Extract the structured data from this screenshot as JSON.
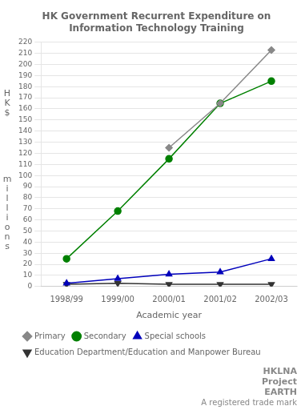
{
  "chart_data": {
    "type": "line",
    "title": "HK Government Recurrent Expenditure on Information Technology Training",
    "xlabel": "Academic year",
    "ylabel": [
      "H\nK\n$",
      "m\ni\nl\nl\ni\no\nn\ns"
    ],
    "categories": [
      "1998/99",
      "1999/00",
      "2000/01",
      "2001/02",
      "2002/03"
    ],
    "series": [
      {
        "name": "Primary",
        "color": "#888888",
        "marker": "diamond",
        "values": [
          null,
          null,
          125,
          165,
          213
        ]
      },
      {
        "name": "Secondary",
        "color": "#008000",
        "marker": "circle",
        "values": [
          25,
          68,
          115,
          165,
          185
        ]
      },
      {
        "name": "Special schools",
        "color": "#0000bb",
        "marker": "triangle",
        "values": [
          3,
          7,
          11,
          13,
          25
        ]
      },
      {
        "name": "Education Department/Education and Manpower Bureau",
        "color": "#333333",
        "marker": "triangle_down",
        "values": [
          2,
          3,
          2,
          2,
          2
        ]
      }
    ],
    "ylim": [
      0,
      220
    ],
    "yticks": [
      0,
      10,
      20,
      30,
      40,
      50,
      60,
      70,
      80,
      90,
      100,
      110,
      120,
      130,
      140,
      150,
      160,
      170,
      180,
      190,
      200,
      210,
      220
    ],
    "grid": "y",
    "legend": "bottom",
    "annotations": [
      "HKLNA",
      "Project",
      "EARTH",
      "A registered trade mark"
    ]
  }
}
